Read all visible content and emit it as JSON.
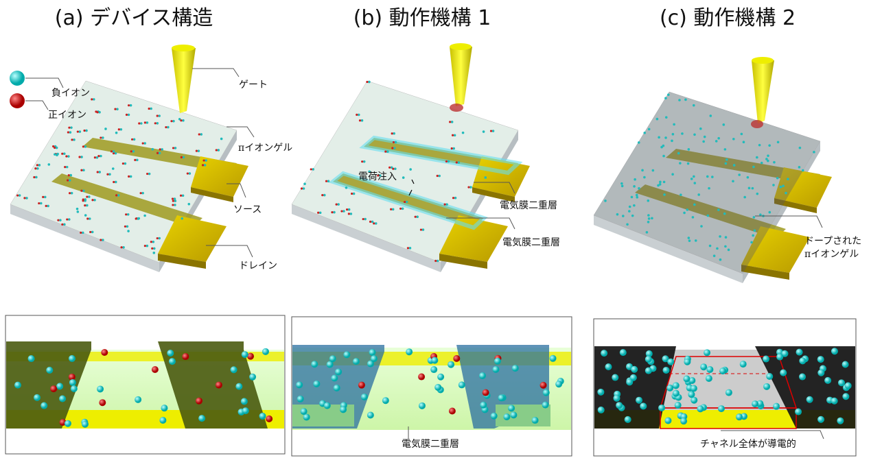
{
  "panels": [
    {
      "title": "(a) デバイス構造",
      "labels": {
        "anion": "負イオン",
        "cation": "正イオン",
        "gate": "ゲート",
        "gel": "πイオンゲル",
        "source": "ソース",
        "drain": "ドレイン"
      }
    },
    {
      "title": "(b) 動作機構 1",
      "labels": {
        "injection": "電荷注入",
        "edl_upper": "電気膜二重層",
        "edl_lower": "電気膜二重層"
      },
      "inset_label": "電気膜二重層"
    },
    {
      "title": "(c) 動作機構 2",
      "labels": {
        "doped_line1": "ドープされた",
        "doped_line2": "πイオンゲル"
      },
      "inset_label": "チャネル全体が導電的"
    }
  ]
}
